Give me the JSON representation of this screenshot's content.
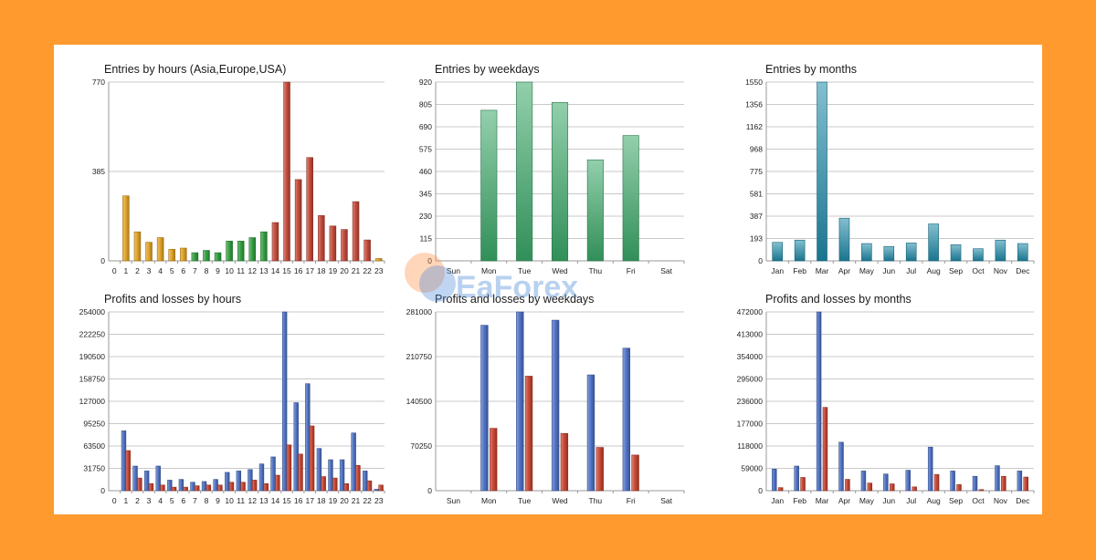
{
  "watermark": {
    "text": "EaForex"
  },
  "chart_data": [
    {
      "id": "entries-hours",
      "type": "bar",
      "title": "Entries by hours (Asia,Europe,USA)",
      "categories": [
        "0",
        "1",
        "2",
        "3",
        "4",
        "5",
        "6",
        "7",
        "8",
        "9",
        "10",
        "11",
        "12",
        "13",
        "14",
        "15",
        "16",
        "17",
        "18",
        "19",
        "20",
        "21",
        "22",
        "23"
      ],
      "ylim": [
        0,
        770
      ],
      "yticks": [
        "0",
        "385",
        "770"
      ],
      "series": [
        {
          "name": "Entries",
          "values": [
            0,
            280,
            125,
            80,
            100,
            50,
            55,
            35,
            45,
            35,
            85,
            85,
            100,
            125,
            165,
            770,
            350,
            445,
            195,
            150,
            135,
            255,
            90,
            10
          ],
          "colors": [
            "#e0a020",
            "#e0a020",
            "#e0a020",
            "#e0a020",
            "#e0a020",
            "#e0a020",
            "#e0a020",
            "#2e9c3a",
            "#2e9c3a",
            "#2e9c3a",
            "#2e9c3a",
            "#2e9c3a",
            "#2e9c3a",
            "#2e9c3a",
            "#c24535",
            "#c24535",
            "#c24535",
            "#c24535",
            "#c24535",
            "#c24535",
            "#c24535",
            "#c24535",
            "#c24535",
            "#e0a020"
          ]
        }
      ]
    },
    {
      "id": "entries-weekdays",
      "type": "bar",
      "title": "Entries by weekdays",
      "categories": [
        "Sun",
        "Mon",
        "Tue",
        "Wed",
        "Thu",
        "Fri",
        "Sat"
      ],
      "ylim": [
        0,
        920
      ],
      "yticks": [
        "0",
        "115",
        "230",
        "345",
        "460",
        "575",
        "690",
        "805",
        "920"
      ],
      "series": [
        {
          "name": "Entries",
          "values": [
            0,
            775,
            920,
            815,
            520,
            645,
            0
          ],
          "color": "#3aa868"
        }
      ]
    },
    {
      "id": "entries-months",
      "type": "bar",
      "title": "Entries by months",
      "categories": [
        "Jan",
        "Feb",
        "Mar",
        "Apr",
        "May",
        "Jun",
        "Jul",
        "Aug",
        "Sep",
        "Oct",
        "Nov",
        "Dec"
      ],
      "ylim": [
        0,
        1550
      ],
      "yticks": [
        "0",
        "193",
        "387",
        "581",
        "775",
        "968",
        "1162",
        "1356",
        "1550"
      ],
      "series": [
        {
          "name": "Entries",
          "values": [
            160,
            180,
            1550,
            370,
            150,
            125,
            155,
            320,
            140,
            105,
            180,
            150
          ],
          "color": "#1e8aa8"
        }
      ]
    },
    {
      "id": "pl-hours",
      "type": "bar",
      "title": "Profits and losses by hours",
      "categories": [
        "0",
        "1",
        "2",
        "3",
        "4",
        "5",
        "6",
        "7",
        "8",
        "9",
        "10",
        "11",
        "12",
        "13",
        "14",
        "15",
        "16",
        "17",
        "18",
        "19",
        "20",
        "21",
        "22",
        "23"
      ],
      "ylim": [
        0,
        254000
      ],
      "yticks": [
        "0",
        "31750",
        "63500",
        "95250",
        "127000",
        "158750",
        "190500",
        "222250",
        "254000"
      ],
      "series": [
        {
          "name": "Profits",
          "color": "#4a6fc4",
          "values": [
            0,
            85000,
            35000,
            28000,
            35000,
            15000,
            16000,
            12000,
            13000,
            16000,
            26000,
            28000,
            30000,
            38000,
            48000,
            254000,
            125000,
            152000,
            60000,
            44000,
            44000,
            82000,
            28000,
            2000
          ]
        },
        {
          "name": "Losses",
          "color": "#c8402c",
          "values": [
            0,
            57000,
            18000,
            10000,
            8000,
            5000,
            5000,
            7000,
            8000,
            8000,
            12000,
            12000,
            15000,
            10000,
            22000,
            65000,
            52000,
            92000,
            20000,
            18000,
            10000,
            36000,
            14000,
            8000
          ]
        }
      ]
    },
    {
      "id": "pl-weekdays",
      "type": "bar",
      "title": "Profits and losses by weekdays",
      "categories": [
        "Sun",
        "Mon",
        "Tue",
        "Wed",
        "Thu",
        "Fri",
        "Sat"
      ],
      "ylim": [
        0,
        281000
      ],
      "yticks": [
        "0",
        "70250",
        "140500",
        "210750",
        "281000"
      ],
      "series": [
        {
          "name": "Profits",
          "color": "#4a6fc4",
          "values": [
            0,
            260000,
            281000,
            268000,
            182000,
            224000,
            0
          ]
        },
        {
          "name": "Losses",
          "color": "#c8402c",
          "values": [
            0,
            98000,
            180000,
            90000,
            68000,
            56000,
            0
          ]
        }
      ]
    },
    {
      "id": "pl-months",
      "type": "bar",
      "title": "Profits and losses by months",
      "categories": [
        "Jan",
        "Feb",
        "Mar",
        "Apr",
        "May",
        "Jun",
        "Jul",
        "Aug",
        "Sep",
        "Oct",
        "Nov",
        "Dec"
      ],
      "ylim": [
        0,
        472000
      ],
      "yticks": [
        "0",
        "59000",
        "118000",
        "177000",
        "236000",
        "295000",
        "354000",
        "413000",
        "472000"
      ],
      "series": [
        {
          "name": "Profits",
          "color": "#4a6fc4",
          "values": [
            57000,
            65000,
            472000,
            128000,
            52000,
            44000,
            54000,
            115000,
            52000,
            38000,
            66000,
            52000
          ]
        },
        {
          "name": "Losses",
          "color": "#c8402c",
          "values": [
            8000,
            35000,
            220000,
            30000,
            20000,
            18000,
            10000,
            43000,
            16000,
            3000,
            38000,
            36000
          ]
        }
      ]
    }
  ]
}
